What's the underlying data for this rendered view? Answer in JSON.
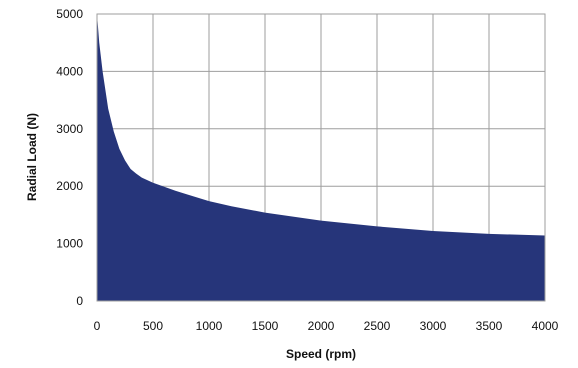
{
  "chart_data": {
    "type": "area",
    "title": "",
    "xlabel": "Speed (rpm)",
    "ylabel": "Radial Load (N)",
    "xlim": [
      0,
      4000
    ],
    "ylim": [
      0,
      5000
    ],
    "x_ticks": [
      "0",
      "500",
      "1000",
      "1500",
      "2000",
      "2500",
      "3000",
      "3500",
      "4000"
    ],
    "y_ticks": [
      "0",
      "1000",
      "2000",
      "3000",
      "4000",
      "5000"
    ],
    "grid": true,
    "fill_color": "#26357a",
    "grid_color": "#9e9e9e",
    "series": [
      {
        "x": [
          0,
          20,
          50,
          100,
          150,
          200,
          250,
          300,
          350,
          400,
          500,
          600,
          700,
          800,
          1000,
          1200,
          1500,
          2000,
          2500,
          3000,
          3500,
          4000
        ],
        "y": [
          5000,
          4500,
          4000,
          3350,
          2950,
          2650,
          2450,
          2300,
          2220,
          2150,
          2060,
          1990,
          1920,
          1860,
          1740,
          1650,
          1540,
          1400,
          1300,
          1220,
          1170,
          1140
        ]
      }
    ]
  }
}
